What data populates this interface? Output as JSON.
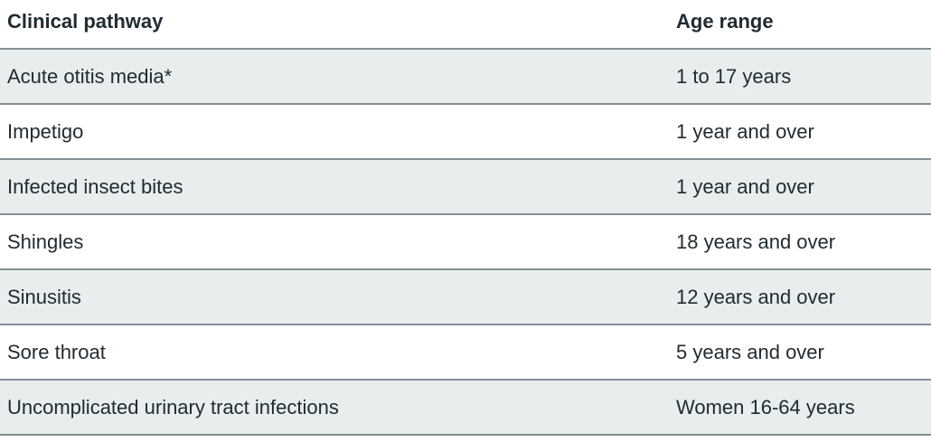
{
  "table": {
    "columns": [
      {
        "key": "pathway",
        "label": "Clinical pathway"
      },
      {
        "key": "age_range",
        "label": "Age range"
      }
    ],
    "rows": [
      {
        "pathway": "Acute otitis media*",
        "age_range": "1 to 17 years"
      },
      {
        "pathway": "Impetigo",
        "age_range": "1 year and over"
      },
      {
        "pathway": "Infected insect bites",
        "age_range": "1 year and over"
      },
      {
        "pathway": "Shingles",
        "age_range": "18 years and over"
      },
      {
        "pathway": "Sinusitis",
        "age_range": "12 years and over"
      },
      {
        "pathway": "Sore throat",
        "age_range": "5 years and over"
      },
      {
        "pathway": "Uncomplicated urinary tract infections",
        "age_range": "Women 16-64 years"
      }
    ],
    "footnote_marker": "*"
  },
  "colors": {
    "zebra_row_background": "#e8edee",
    "row_border": "#848f94",
    "text": "#212b32",
    "page_background": "#ffffff"
  }
}
